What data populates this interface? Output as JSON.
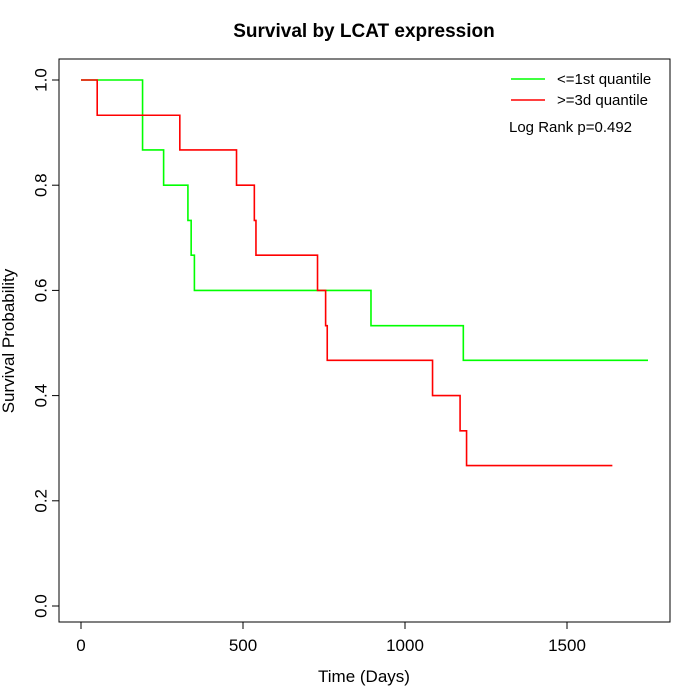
{
  "chart_data": {
    "type": "line",
    "title": "Survival by LCAT expression",
    "xlabel": "Time (Days)",
    "ylabel": "Survival Probability",
    "xlim": [
      0,
      1750
    ],
    "ylim": [
      0,
      1
    ],
    "xticks": [
      0,
      500,
      1000,
      1500
    ],
    "yticks": [
      0.0,
      0.2,
      0.4,
      0.6,
      0.8,
      1.0
    ],
    "xtick_labels": [
      "0",
      "500",
      "1000",
      "1500"
    ],
    "ytick_labels": [
      "0.0",
      "0.2",
      "0.4",
      "0.6",
      "0.8",
      "1.0"
    ],
    "step": true,
    "legend_position": "top-right",
    "annotation": "Log Rank p=0.492",
    "series": [
      {
        "name": "<=1st quantile",
        "color": "#00ff00",
        "x": [
          0,
          170,
          190,
          255,
          330,
          340,
          350,
          895,
          1180,
          1750
        ],
        "y": [
          1.0,
          1.0,
          0.867,
          0.8,
          0.733,
          0.667,
          0.6,
          0.533,
          0.467,
          0.467
        ]
      },
      {
        "name": ">=3d quantile",
        "color": "#ff0000",
        "x": [
          0,
          50,
          305,
          480,
          535,
          540,
          730,
          755,
          760,
          1085,
          1170,
          1190,
          1640
        ],
        "y": [
          1.0,
          0.933,
          0.867,
          0.8,
          0.733,
          0.667,
          0.6,
          0.533,
          0.467,
          0.4,
          0.333,
          0.267,
          0.267
        ]
      }
    ]
  }
}
